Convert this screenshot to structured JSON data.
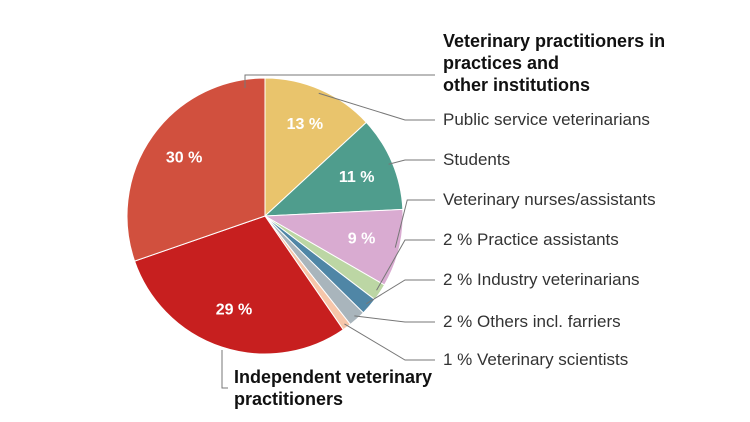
{
  "chart_data": {
    "type": "pie",
    "categories": [
      "Public service veterinarians",
      "Students",
      "Veterinary nurses/assistants",
      "Practice assistants",
      "Industry veterinarians",
      "Others incl. farriers",
      "Veterinary scientists",
      "Independent veterinary\npractitioners",
      "Veterinary practitioners in\npractices and\nother institutions"
    ],
    "values": [
      13,
      11,
      9,
      2,
      2,
      2,
      1,
      29,
      30
    ],
    "value_labels": [
      "13 %",
      "11 %",
      "9 %",
      "2 %",
      "2 %",
      "2 %",
      "1 %",
      "29 %",
      "30 %"
    ],
    "colors": [
      "#e9c46c",
      "#4f9d8d",
      "#d9abd1",
      "#bcd6a4",
      "#4f86a6",
      "#a9b5bc",
      "#f6c6aa",
      "#c71f1f",
      "#d1503e"
    ]
  }
}
